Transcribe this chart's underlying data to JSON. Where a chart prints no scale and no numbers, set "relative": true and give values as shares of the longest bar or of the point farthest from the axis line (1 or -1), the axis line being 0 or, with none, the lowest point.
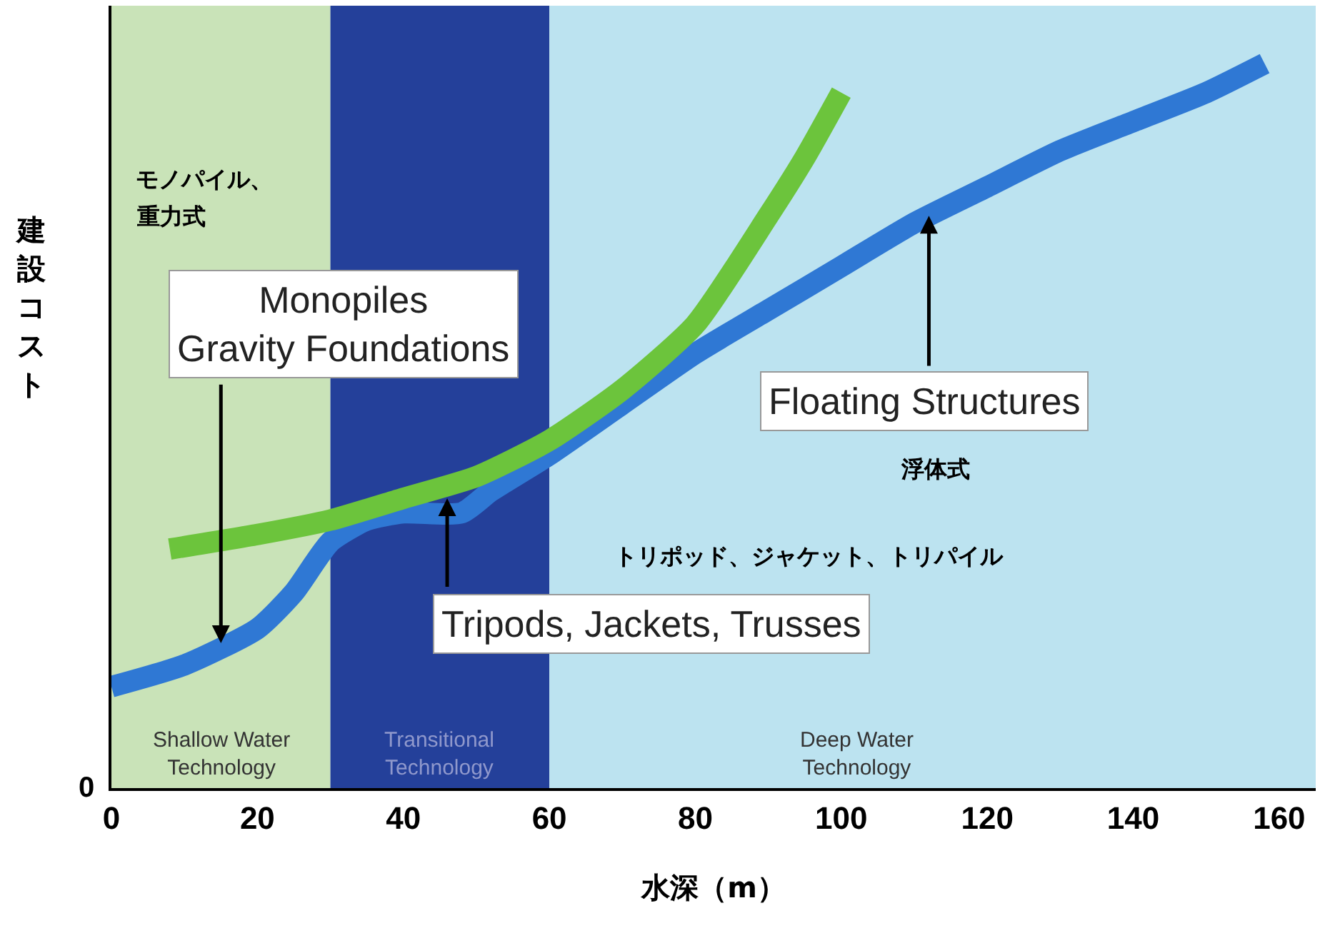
{
  "chart_data": {
    "type": "line",
    "relative": true,
    "xlabel": "水深（m）",
    "ylabel": "建設コスト",
    "xlim": [
      0,
      165
    ],
    "xticks": [
      0,
      20,
      40,
      60,
      80,
      100,
      120,
      140,
      160
    ],
    "grid": false,
    "marker": "none",
    "line_style": "solid",
    "series": [
      {
        "color": "#2f78d4",
        "x": [
          0,
          10,
          20,
          25,
          30,
          35,
          40,
          48,
          52,
          60,
          70,
          80,
          90,
          100,
          110,
          120,
          130,
          140,
          150,
          158
        ],
        "values": [
          0.14,
          0.17,
          0.22,
          0.27,
          0.34,
          0.37,
          0.38,
          0.38,
          0.41,
          0.46,
          0.53,
          0.6,
          0.66,
          0.72,
          0.78,
          0.83,
          0.88,
          0.92,
          0.96,
          1.0
        ]
      },
      {
        "color": "#6cc43c",
        "x": [
          8,
          20,
          30,
          40,
          50,
          60,
          70,
          80,
          90,
          95,
          100
        ],
        "values": [
          0.33,
          0.35,
          0.37,
          0.4,
          0.43,
          0.48,
          0.55,
          0.64,
          0.79,
          0.87,
          0.96
        ]
      }
    ],
    "bands": [
      {
        "axis": "x",
        "from": 0,
        "to": 30,
        "label": "Shallow Water\nTechnology",
        "color": "#c9e3b8"
      },
      {
        "axis": "x",
        "from": 30,
        "to": 60,
        "label": "Transitional\nTechnology",
        "color": "#24409a"
      },
      {
        "axis": "x",
        "from": 60,
        "to": 165,
        "label": "Deep Water\nTechnology",
        "color": "#bce3f0"
      }
    ],
    "annotations": [
      "0",
      "モノパイル、",
      "重力式",
      {
        "text": "Monopiles\nGravity Foundations",
        "x": 15,
        "y": 0.2
      },
      {
        "text": "Floating Structures",
        "x": 112,
        "y": 0.79
      },
      "浮体式",
      "トリポッド、ジャケット、トリパイル",
      {
        "text": "Tripods, Jackets, Trusses",
        "x": 46,
        "y": 0.4
      }
    ]
  }
}
